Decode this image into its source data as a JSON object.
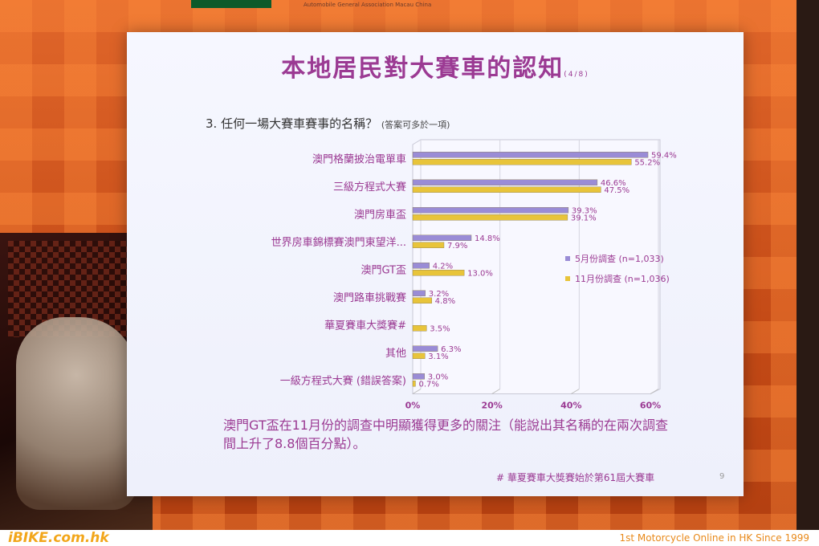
{
  "header": {
    "org_text": "Automobile General Association Macau China"
  },
  "slide": {
    "title": "本地居民對大賽車的認知",
    "title_suffix": "(4/8)",
    "question": "3. 任何一場大賽車賽事的名稱？",
    "question_note": "(答案可多於一項)",
    "note": "澳門GT盃在11月份的調查中明顯獲得更多的關注（能說出其名稱的在兩次調查間上升了8.8個百分點）。",
    "hash_note": "# 華夏賽車大獎賽始於第61屆大賽車",
    "page_number": "9"
  },
  "chart_data": {
    "type": "bar",
    "orientation": "horizontal",
    "categories": [
      "澳門格蘭披治電單車",
      "三級方程式大賽",
      "澳門房車盃",
      "世界房車錦標賽澳門東望洋...",
      "澳門GT盃",
      "澳門路車挑戰賽",
      "華夏賽車大獎賽#",
      "其他",
      "一級方程式大賽 (錯誤答案)"
    ],
    "series": [
      {
        "name": "5月份調查 (n=1,033)",
        "color": "#9a8cd6",
        "values": [
          59.4,
          46.6,
          39.3,
          14.8,
          4.2,
          3.2,
          null,
          6.3,
          3.0
        ],
        "labels": [
          "59.4%",
          "46.6%",
          "39.3%",
          "14.8%",
          "4.2%",
          "3.2%",
          "",
          "6.3%",
          "3.0%"
        ]
      },
      {
        "name": "11月份調查 (n=1,036)",
        "color": "#e8c43a",
        "values": [
          55.2,
          47.5,
          39.1,
          7.9,
          13.0,
          4.8,
          3.5,
          3.1,
          0.7
        ],
        "labels": [
          "55.2%",
          "47.5%",
          "39.1%",
          "7.9%",
          "13.0%",
          "4.8%",
          "3.5%",
          "3.1%",
          "0.7%"
        ]
      }
    ],
    "x_ticks": [
      "0%",
      "20%",
      "40%",
      "60%"
    ],
    "xlim": [
      0,
      60
    ],
    "legend_position": "right",
    "grid": true
  },
  "bottom": {
    "logo": "iBIKE.com.hk",
    "tagline": "1st  Motorcycle Online in HK Since 1999"
  }
}
